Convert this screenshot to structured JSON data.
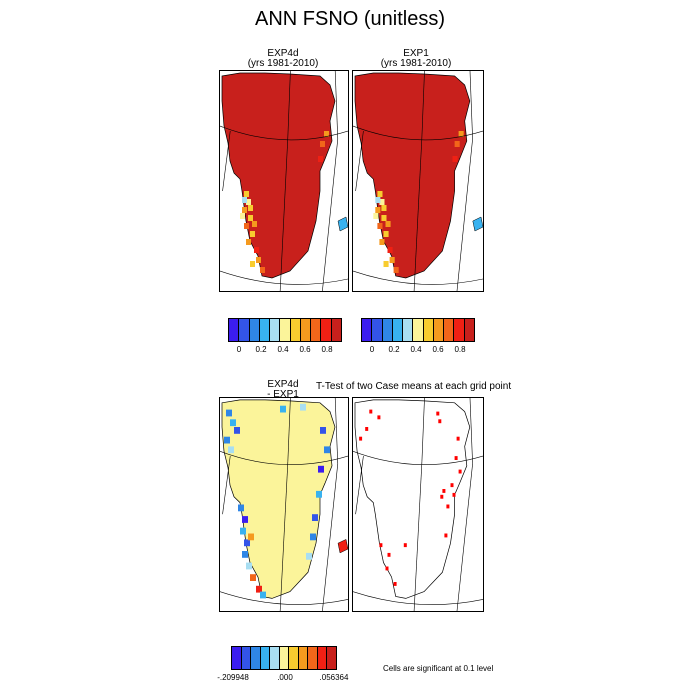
{
  "title": "ANN FSNO (unitless)",
  "panels": {
    "p1": {
      "line1": "EXP4d",
      "line2": "(yrs 1981-2010)"
    },
    "p2": {
      "line1": "EXP1",
      "line2": "(yrs 1981-2010)"
    },
    "p3": {
      "line1": "EXP4d",
      "line2": "- EXP1"
    },
    "p4": {
      "title": "T-Test of two Case means at each grid point"
    }
  },
  "colorbar_abs": {
    "colors": [
      "#3b1df0",
      "#3354e8",
      "#2f86e6",
      "#38b2f0",
      "#a8def2",
      "#fbf49a",
      "#f8cc2f",
      "#f59a1e",
      "#f2661a",
      "#f02014",
      "#c8201c"
    ],
    "ticks": [
      "0",
      "0.2",
      "0.4",
      "0.6",
      "0.8"
    ]
  },
  "colorbar_diff": {
    "colors": [
      "#3b1df0",
      "#3354e8",
      "#2f86e6",
      "#38b2f0",
      "#a8def2",
      "#fbf49a",
      "#f8cc2f",
      "#f59a1e",
      "#f2661a",
      "#f02014",
      "#c8201c"
    ],
    "ticks": [
      ".209948",
      ".000",
      ".056364"
    ],
    "tick_prefix_first": "-"
  },
  "footnote": "Cells are significant at 0.1 level",
  "chart_data": [
    {
      "type": "heatmap",
      "name_hint": "EXP4d",
      "value_range": [
        0,
        0.9
      ],
      "dominant_value": 0.85,
      "colors_ref": "colorbar_abs"
    },
    {
      "type": "heatmap",
      "name_hint": "EXP1",
      "value_range": [
        0,
        0.9
      ],
      "dominant_value": 0.85,
      "colors_ref": "colorbar_abs"
    },
    {
      "type": "heatmap",
      "name_hint": "EXP4d - EXP1",
      "value_range": [
        -0.209948,
        0.056364
      ],
      "dominant_value": 0.0,
      "colors_ref": "colorbar_diff"
    },
    {
      "type": "heatmap",
      "name_hint": "T-Test significance",
      "significance_level": 0.1,
      "mark_color": "#ff0000"
    }
  ]
}
